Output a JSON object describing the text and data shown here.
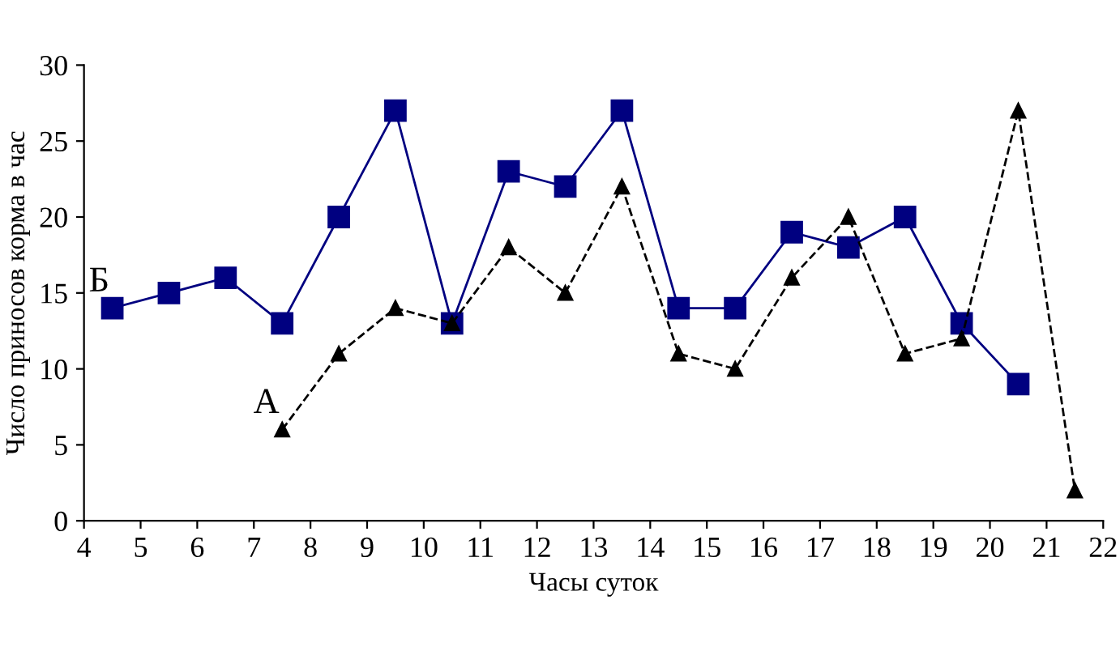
{
  "chart_data": {
    "type": "line",
    "xlabel": "Часы суток",
    "ylabel": "Число приносов корма в час",
    "xlim": [
      4,
      22
    ],
    "xticks": [
      4,
      5,
      6,
      7,
      8,
      9,
      10,
      11,
      12,
      13,
      14,
      15,
      16,
      17,
      18,
      19,
      20,
      21,
      22
    ],
    "ylim": [
      0,
      30
    ],
    "yticks": [
      0,
      5,
      10,
      15,
      20,
      25,
      30
    ],
    "grid": false,
    "legend": false,
    "series": [
      {
        "name": "Б",
        "color": "#000080",
        "marker": "square",
        "line_style": "solid",
        "x": [
          4.5,
          5.5,
          6.5,
          7.5,
          8.5,
          9.5,
          10.5,
          11.5,
          12.5,
          13.5,
          14.5,
          15.5,
          16.5,
          17.5,
          18.5,
          19.5,
          20.5
        ],
        "values": [
          14,
          15,
          16,
          13,
          20,
          27,
          13,
          23,
          22,
          27,
          14,
          14,
          19,
          18,
          20,
          13,
          9
        ]
      },
      {
        "name": "А",
        "color": "#000000",
        "marker": "triangle",
        "line_style": "dashed",
        "x": [
          7.5,
          8.5,
          9.5,
          10.5,
          11.5,
          12.5,
          13.5,
          14.5,
          15.5,
          16.5,
          17.5,
          18.5,
          19.5,
          20.5,
          21.5
        ],
        "values": [
          6,
          11,
          14,
          13,
          18,
          15,
          22,
          11,
          10,
          16,
          20,
          11,
          12,
          27,
          2
        ]
      }
    ]
  }
}
